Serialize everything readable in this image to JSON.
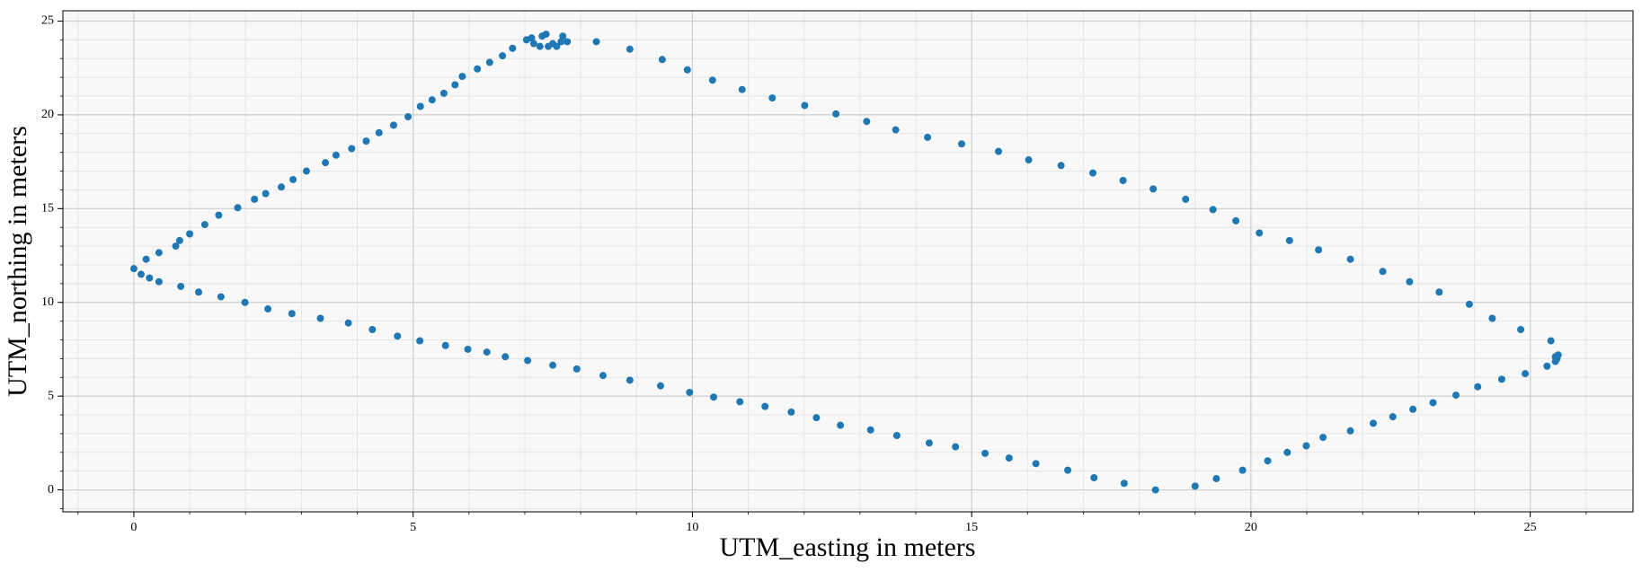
{
  "chart_data": {
    "type": "scatter",
    "xlabel": "UTM_easting in meters",
    "ylabel": "UTM_northing in meters",
    "color": "#1f77b4",
    "x": [
      0,
      0.22,
      0.45,
      0.75,
      0.82,
      1.0,
      1.27,
      1.52,
      1.86,
      2.16,
      2.36,
      2.64,
      2.85,
      3.09,
      3.43,
      3.62,
      3.9,
      4.16,
      4.39,
      4.65,
      4.91,
      5.13,
      5.34,
      5.55,
      5.75,
      5.88,
      6.15,
      6.37,
      6.6,
      6.78,
      7.03,
      7.12,
      7.16,
      7.27,
      7.31,
      7.38,
      7.42,
      7.5,
      7.57,
      7.65,
      7.68,
      7.76,
      8.28,
      8.88,
      9.46,
      9.91,
      10.36,
      10.89,
      11.43,
      12.01,
      12.57,
      13.12,
      13.64,
      14.21,
      14.82,
      15.48,
      16.02,
      16.6,
      17.17,
      17.71,
      18.25,
      18.83,
      19.32,
      19.73,
      20.15,
      20.69,
      21.21,
      21.78,
      22.36,
      22.84,
      23.37,
      23.91,
      24.32,
      24.83,
      25.37,
      25.5,
      25.48,
      25.45,
      0.13,
      0.28,
      0.45,
      0.84,
      1.16,
      1.56,
      1.99,
      2.4,
      2.83,
      3.34,
      3.84,
      4.27,
      4.72,
      5.12,
      5.58,
      5.98,
      6.32,
      6.65,
      7.05,
      7.5,
      7.93,
      8.4,
      8.88,
      9.43,
      9.95,
      10.38,
      10.85,
      11.3,
      11.77,
      12.22,
      12.65,
      13.19,
      13.66,
      14.24,
      14.71,
      15.24,
      15.67,
      16.15,
      16.72,
      17.19,
      17.73,
      18.29,
      19.0,
      19.38,
      19.85,
      20.3,
      20.65,
      20.99,
      21.29,
      21.78,
      22.19,
      22.54,
      22.9,
      23.26,
      23.67,
      24.06,
      24.49,
      24.91,
      25.3,
      25.45
    ],
    "values": [
      11.8,
      12.3,
      12.65,
      13.0,
      13.3,
      13.65,
      14.15,
      14.65,
      15.05,
      15.5,
      15.8,
      16.15,
      16.55,
      17.0,
      17.45,
      17.85,
      18.2,
      18.6,
      19.05,
      19.45,
      19.9,
      20.45,
      20.8,
      21.15,
      21.6,
      22.05,
      22.45,
      22.8,
      23.15,
      23.55,
      24.0,
      24.1,
      23.8,
      23.65,
      24.2,
      24.3,
      23.65,
      23.8,
      23.65,
      23.9,
      24.2,
      23.9,
      23.9,
      23.5,
      22.95,
      22.4,
      21.85,
      21.35,
      20.9,
      20.5,
      20.05,
      19.65,
      19.2,
      18.8,
      18.45,
      18.05,
      17.6,
      17.3,
      16.9,
      16.5,
      16.05,
      15.5,
      14.95,
      14.35,
      13.7,
      13.3,
      12.8,
      12.3,
      11.65,
      11.1,
      10.55,
      9.9,
      9.15,
      8.55,
      7.95,
      7.2,
      7.0,
      7.1,
      11.5,
      11.3,
      11.1,
      10.85,
      10.55,
      10.3,
      10.0,
      9.65,
      9.4,
      9.15,
      8.9,
      8.55,
      8.2,
      7.95,
      7.7,
      7.5,
      7.35,
      7.1,
      6.9,
      6.65,
      6.45,
      6.1,
      5.85,
      5.55,
      5.2,
      4.95,
      4.7,
      4.45,
      4.15,
      3.85,
      3.45,
      3.2,
      2.9,
      2.5,
      2.3,
      1.95,
      1.7,
      1.4,
      1.05,
      0.65,
      0.35,
      0.0,
      0.2,
      0.6,
      1.05,
      1.55,
      2.0,
      2.35,
      2.8,
      3.15,
      3.55,
      3.9,
      4.3,
      4.65,
      5.05,
      5.5,
      5.9,
      6.2,
      6.6,
      6.85
    ],
    "xlim": [
      -1.27,
      26.84
    ],
    "ylim": [
      -1.17,
      25.55
    ],
    "xticks": [
      0,
      5,
      10,
      15,
      20,
      25
    ],
    "yticks": [
      0,
      5,
      10,
      15,
      20,
      25
    ],
    "grid": true,
    "minor_grid": true
  }
}
